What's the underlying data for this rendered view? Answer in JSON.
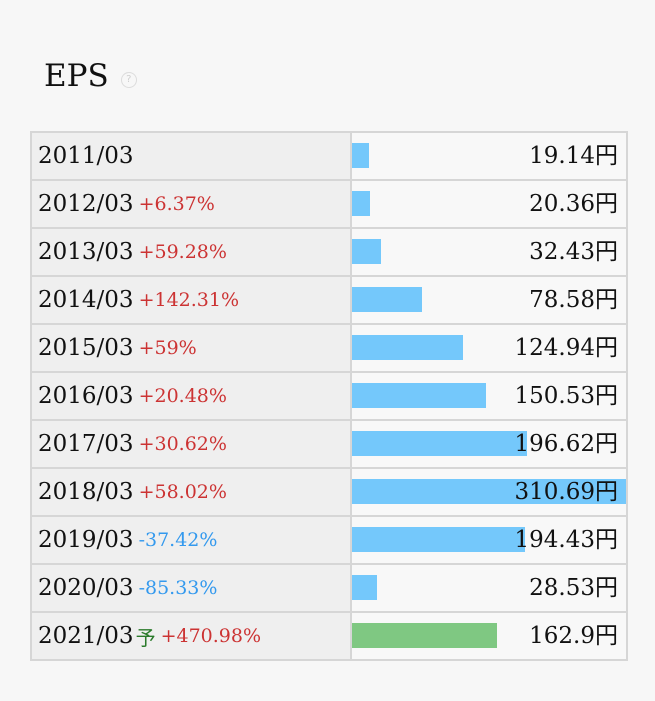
{
  "header": {
    "title": "EPS",
    "help_icon": "?"
  },
  "chart_data": {
    "type": "bar",
    "title": "EPS",
    "unit": "円",
    "categories": [
      "2011/03",
      "2012/03",
      "2013/03",
      "2014/03",
      "2015/03",
      "2016/03",
      "2017/03",
      "2018/03",
      "2019/03",
      "2020/03",
      "2021/03"
    ],
    "values": [
      19.14,
      20.36,
      32.43,
      78.58,
      124.94,
      150.53,
      196.62,
      310.69,
      194.43,
      28.53,
      162.9
    ],
    "rows": [
      {
        "year": "2011/03",
        "mark": "",
        "change": "",
        "value": "19.14円",
        "num": 19.14,
        "forecast": false
      },
      {
        "year": "2012/03",
        "mark": "",
        "change": "+6.37%",
        "value": "20.36円",
        "num": 20.36,
        "forecast": false
      },
      {
        "year": "2013/03",
        "mark": "",
        "change": "+59.28%",
        "value": "32.43円",
        "num": 32.43,
        "forecast": false
      },
      {
        "year": "2014/03",
        "mark": "",
        "change": "+142.31%",
        "value": "78.58円",
        "num": 78.58,
        "forecast": false
      },
      {
        "year": "2015/03",
        "mark": "",
        "change": "+59%",
        "value": "124.94円",
        "num": 124.94,
        "forecast": false
      },
      {
        "year": "2016/03",
        "mark": "",
        "change": "+20.48%",
        "value": "150.53円",
        "num": 150.53,
        "forecast": false
      },
      {
        "year": "2017/03",
        "mark": "",
        "change": "+30.62%",
        "value": "196.62円",
        "num": 196.62,
        "forecast": false
      },
      {
        "year": "2018/03",
        "mark": "",
        "change": "+58.02%",
        "value": "310.69円",
        "num": 310.69,
        "forecast": false
      },
      {
        "year": "2019/03",
        "mark": "",
        "change": "-37.42%",
        "value": "194.43円",
        "num": 194.43,
        "forecast": false
      },
      {
        "year": "2020/03",
        "mark": "",
        "change": "-85.33%",
        "value": "28.53円",
        "num": 28.53,
        "forecast": false
      },
      {
        "year": "2021/03",
        "mark": "予",
        "change": "+470.98%",
        "value": "162.9円",
        "num": 162.9,
        "forecast": true
      }
    ],
    "colors": {
      "actual": "#74c8fb",
      "forecast": "#7fc882",
      "positive": "#cc3333",
      "negative": "#3399ee"
    }
  }
}
